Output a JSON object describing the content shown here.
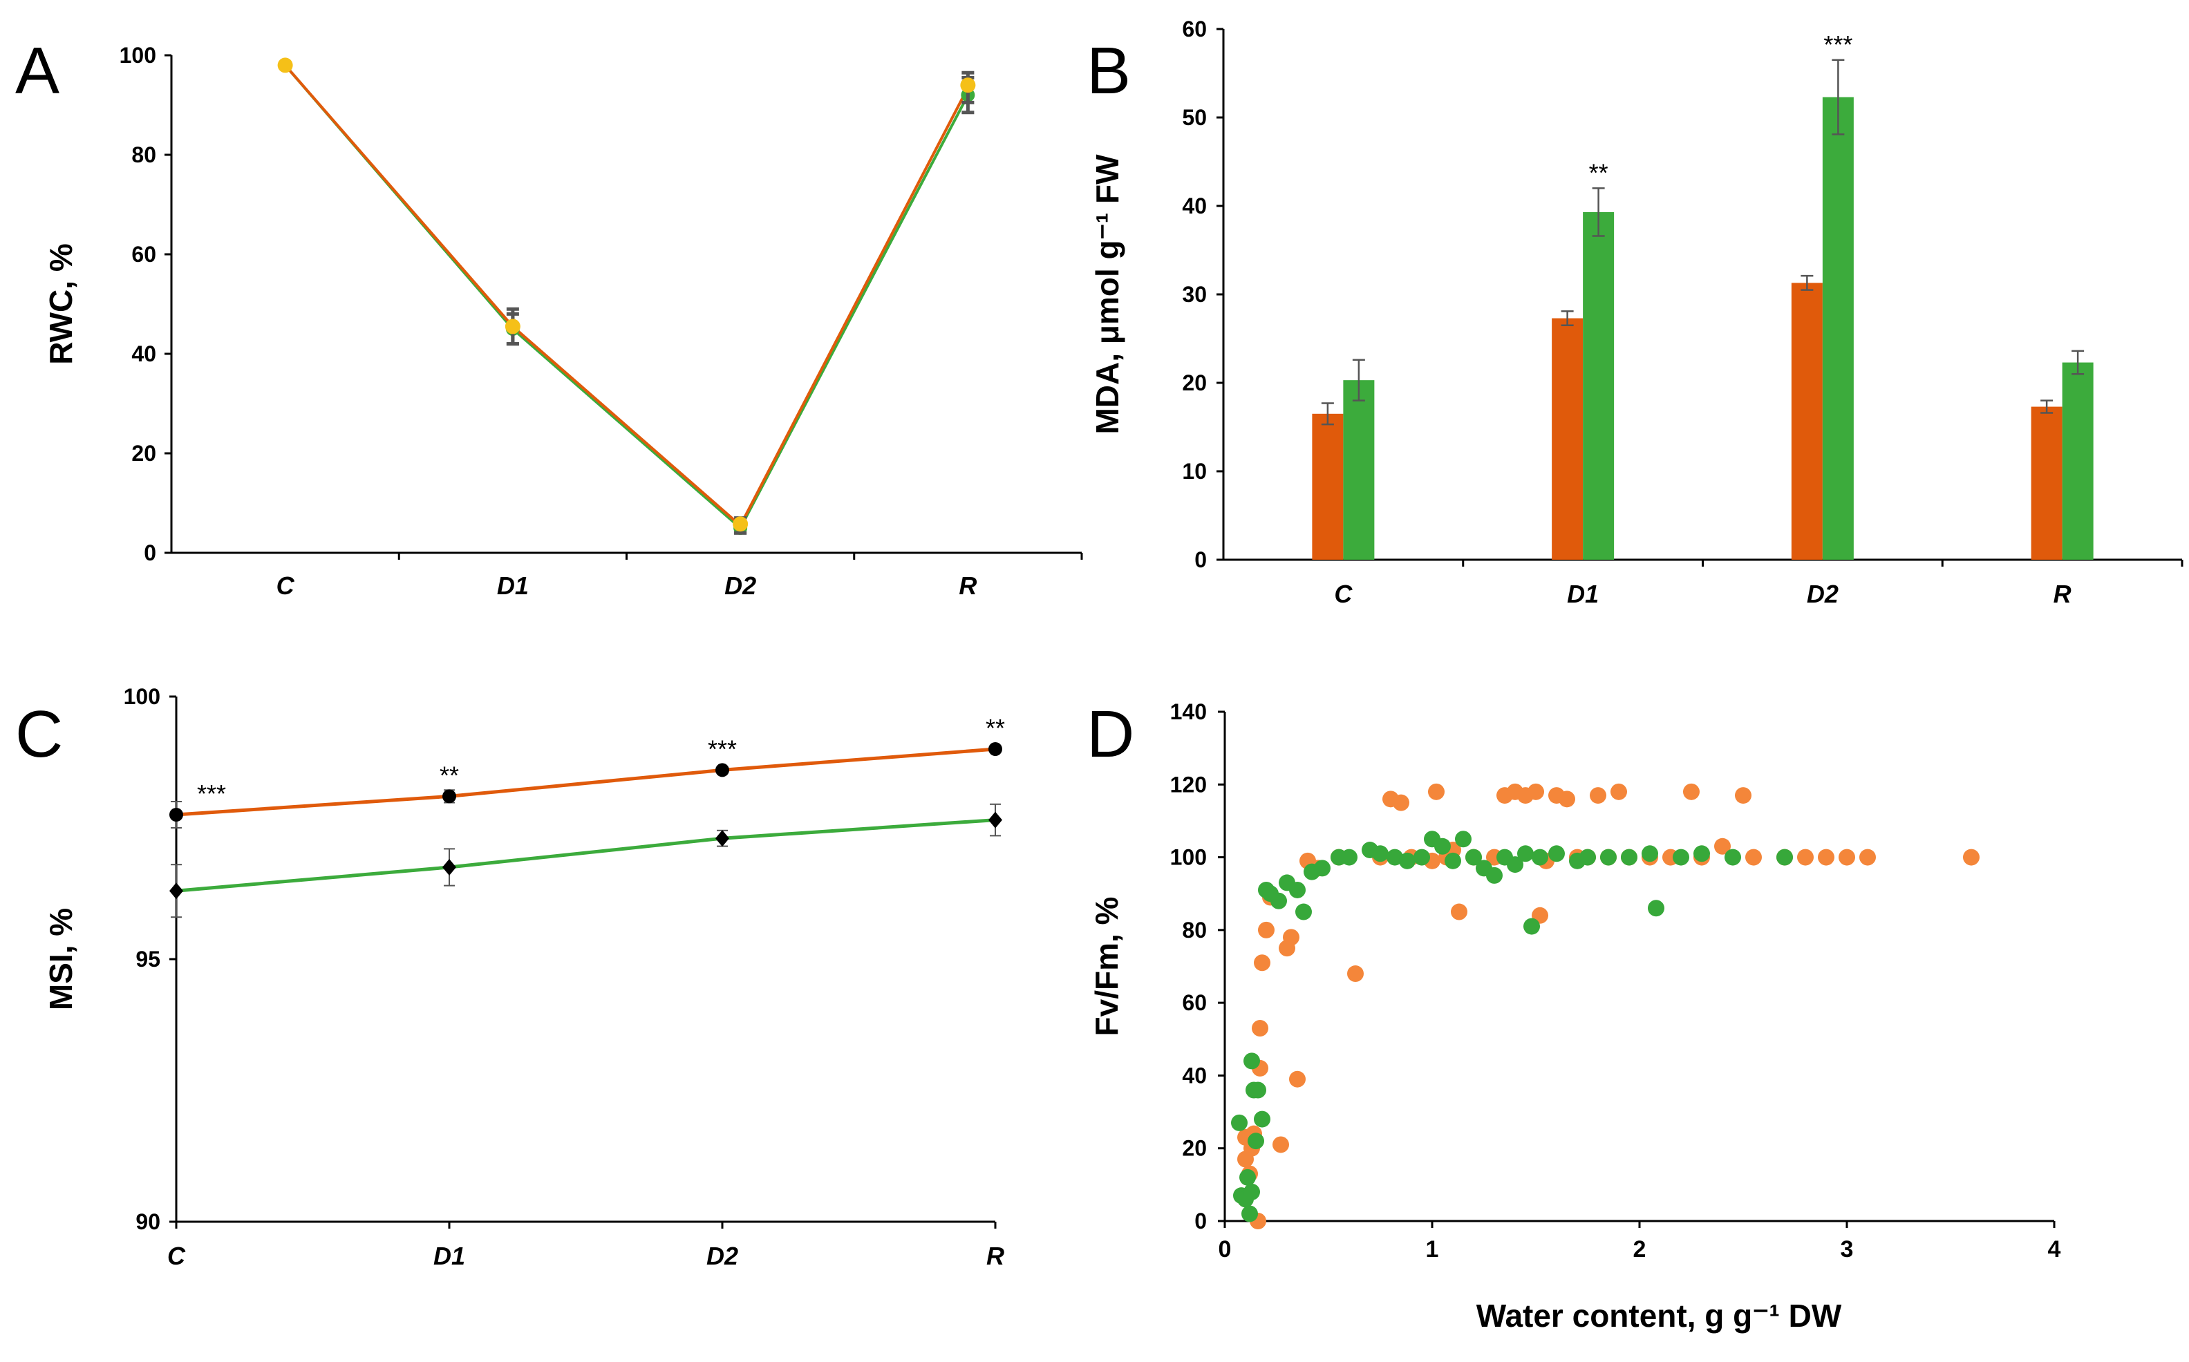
{
  "colors": {
    "orange": "#e05a0b",
    "green": "#3cab3c",
    "yellow": "#f5c018",
    "scatter_orange": "#f4863a",
    "scatter_green": "#37a83a",
    "black": "#000000",
    "errorbar": "#555555"
  },
  "chart_data": [
    {
      "panel": "A",
      "type": "line",
      "categories": [
        "C",
        "D1",
        "D2",
        "R"
      ],
      "ylabel": "RWC, %",
      "xlabel": "",
      "ylim": [
        0,
        100
      ],
      "yticks": [
        "0",
        "20",
        "40",
        "60",
        "80",
        "100"
      ],
      "series": [
        {
          "name": "green series",
          "values": [
            98,
            45,
            5,
            92
          ],
          "errors": [
            0,
            3,
            1,
            3.5
          ]
        },
        {
          "name": "orange series",
          "values": [
            98,
            45.5,
            5.5,
            93.5
          ],
          "errors": [
            0,
            3.5,
            1.5,
            3
          ]
        },
        {
          "name": "yellow markers",
          "values": [
            98,
            45.5,
            5.8,
            94
          ],
          "errors": [
            0,
            0,
            0,
            0
          ]
        }
      ]
    },
    {
      "panel": "B",
      "type": "bar",
      "categories": [
        "C",
        "D1",
        "D2",
        "R"
      ],
      "ylabel": "MDA, μmol g⁻¹ FW",
      "xlabel": "",
      "ylim": [
        0,
        60
      ],
      "yticks": [
        "0",
        "10",
        "20",
        "30",
        "40",
        "50",
        "60"
      ],
      "series": [
        {
          "name": "orange",
          "values": [
            16.5,
            27.3,
            31.3,
            17.3
          ],
          "errors": [
            1.2,
            0.8,
            0.8,
            0.7
          ]
        },
        {
          "name": "green",
          "values": [
            20.3,
            39.3,
            52.3,
            22.3
          ],
          "errors": [
            2.3,
            2.7,
            4.2,
            1.3
          ]
        }
      ],
      "annotations": [
        {
          "category": "D1",
          "text": "**"
        },
        {
          "category": "D2",
          "text": "***"
        }
      ]
    },
    {
      "panel": "C",
      "type": "line",
      "categories": [
        "C",
        "D1",
        "D2",
        "R"
      ],
      "ylabel": "MSI, %",
      "xlabel": "",
      "ylim": [
        90,
        100
      ],
      "yticks": [
        "90",
        "95",
        "100"
      ],
      "series": [
        {
          "name": "orange circles",
          "values": [
            97.75,
            98.1,
            98.6,
            99.0
          ],
          "errors": [
            0.25,
            0.12,
            0.05,
            0.05
          ]
        },
        {
          "name": "green diamonds",
          "values": [
            96.3,
            96.75,
            97.3,
            97.65
          ],
          "errors": [
            0.5,
            0.35,
            0.15,
            0.3
          ]
        }
      ],
      "annotations": [
        {
          "category": "C",
          "text": "***"
        },
        {
          "category": "D1",
          "text": "**"
        },
        {
          "category": "D2",
          "text": "***"
        },
        {
          "category": "R",
          "text": "**"
        }
      ]
    },
    {
      "panel": "D",
      "type": "scatter",
      "ylabel": "Fv/Fm, %",
      "xlabel": "Water content, g g⁻¹ DW",
      "xlim": [
        0,
        4
      ],
      "ylim": [
        0,
        140
      ],
      "xticks": [
        "0",
        "1",
        "2",
        "3",
        "4"
      ],
      "yticks": [
        "0",
        "20",
        "40",
        "60",
        "80",
        "100",
        "120",
        "140"
      ],
      "series": [
        {
          "name": "orange",
          "points": [
            [
              0.1,
              23
            ],
            [
              0.1,
              17
            ],
            [
              0.12,
              13
            ],
            [
              0.13,
              20
            ],
            [
              0.14,
              24
            ],
            [
              0.16,
              0
            ],
            [
              0.17,
              42
            ],
            [
              0.17,
              53
            ],
            [
              0.18,
              71
            ],
            [
              0.2,
              80
            ],
            [
              0.22,
              89
            ],
            [
              0.27,
              21
            ],
            [
              0.3,
              75
            ],
            [
              0.32,
              78
            ],
            [
              0.35,
              39
            ],
            [
              0.4,
              99
            ],
            [
              0.45,
              97
            ],
            [
              0.55,
              100
            ],
            [
              0.63,
              68
            ],
            [
              0.75,
              100
            ],
            [
              0.8,
              116
            ],
            [
              0.85,
              115
            ],
            [
              0.9,
              100
            ],
            [
              1.0,
              99
            ],
            [
              1.02,
              118
            ],
            [
              1.07,
              100
            ],
            [
              1.1,
              102
            ],
            [
              1.13,
              85
            ],
            [
              1.2,
              100
            ],
            [
              1.3,
              100
            ],
            [
              1.35,
              117
            ],
            [
              1.4,
              118
            ],
            [
              1.45,
              117
            ],
            [
              1.5,
              118
            ],
            [
              1.52,
              84
            ],
            [
              1.55,
              99
            ],
            [
              1.6,
              117
            ],
            [
              1.65,
              116
            ],
            [
              1.7,
              100
            ],
            [
              1.75,
              100
            ],
            [
              1.8,
              117
            ],
            [
              1.85,
              100
            ],
            [
              1.9,
              118
            ],
            [
              1.95,
              100
            ],
            [
              2.05,
              100
            ],
            [
              2.15,
              100
            ],
            [
              2.25,
              118
            ],
            [
              2.3,
              100
            ],
            [
              2.4,
              103
            ],
            [
              2.5,
              117
            ],
            [
              2.55,
              100
            ],
            [
              2.7,
              100
            ],
            [
              2.8,
              100
            ],
            [
              2.9,
              100
            ],
            [
              3.0,
              100
            ],
            [
              3.1,
              100
            ],
            [
              3.6,
              100
            ]
          ]
        },
        {
          "name": "green",
          "points": [
            [
              0.07,
              27
            ],
            [
              0.08,
              7
            ],
            [
              0.1,
              6
            ],
            [
              0.11,
              12
            ],
            [
              0.12,
              2
            ],
            [
              0.13,
              8
            ],
            [
              0.13,
              44
            ],
            [
              0.14,
              36
            ],
            [
              0.15,
              22
            ],
            [
              0.16,
              36
            ],
            [
              0.18,
              28
            ],
            [
              0.2,
              91
            ],
            [
              0.22,
              90
            ],
            [
              0.26,
              88
            ],
            [
              0.3,
              93
            ],
            [
              0.35,
              91
            ],
            [
              0.38,
              85
            ],
            [
              0.42,
              96
            ],
            [
              0.47,
              97
            ],
            [
              0.55,
              100
            ],
            [
              0.6,
              100
            ],
            [
              0.7,
              102
            ],
            [
              0.75,
              101
            ],
            [
              0.82,
              100
            ],
            [
              0.88,
              99
            ],
            [
              0.95,
              100
            ],
            [
              1.0,
              105
            ],
            [
              1.05,
              103
            ],
            [
              1.1,
              99
            ],
            [
              1.15,
              105
            ],
            [
              1.2,
              100
            ],
            [
              1.25,
              97
            ],
            [
              1.3,
              95
            ],
            [
              1.35,
              100
            ],
            [
              1.4,
              98
            ],
            [
              1.45,
              101
            ],
            [
              1.48,
              81
            ],
            [
              1.52,
              100
            ],
            [
              1.6,
              101
            ],
            [
              1.7,
              99
            ],
            [
              1.75,
              100
            ],
            [
              1.85,
              100
            ],
            [
              1.95,
              100
            ],
            [
              2.05,
              101
            ],
            [
              2.08,
              86
            ],
            [
              2.2,
              100
            ],
            [
              2.3,
              101
            ],
            [
              2.45,
              100
            ],
            [
              2.7,
              100
            ]
          ]
        }
      ]
    }
  ]
}
